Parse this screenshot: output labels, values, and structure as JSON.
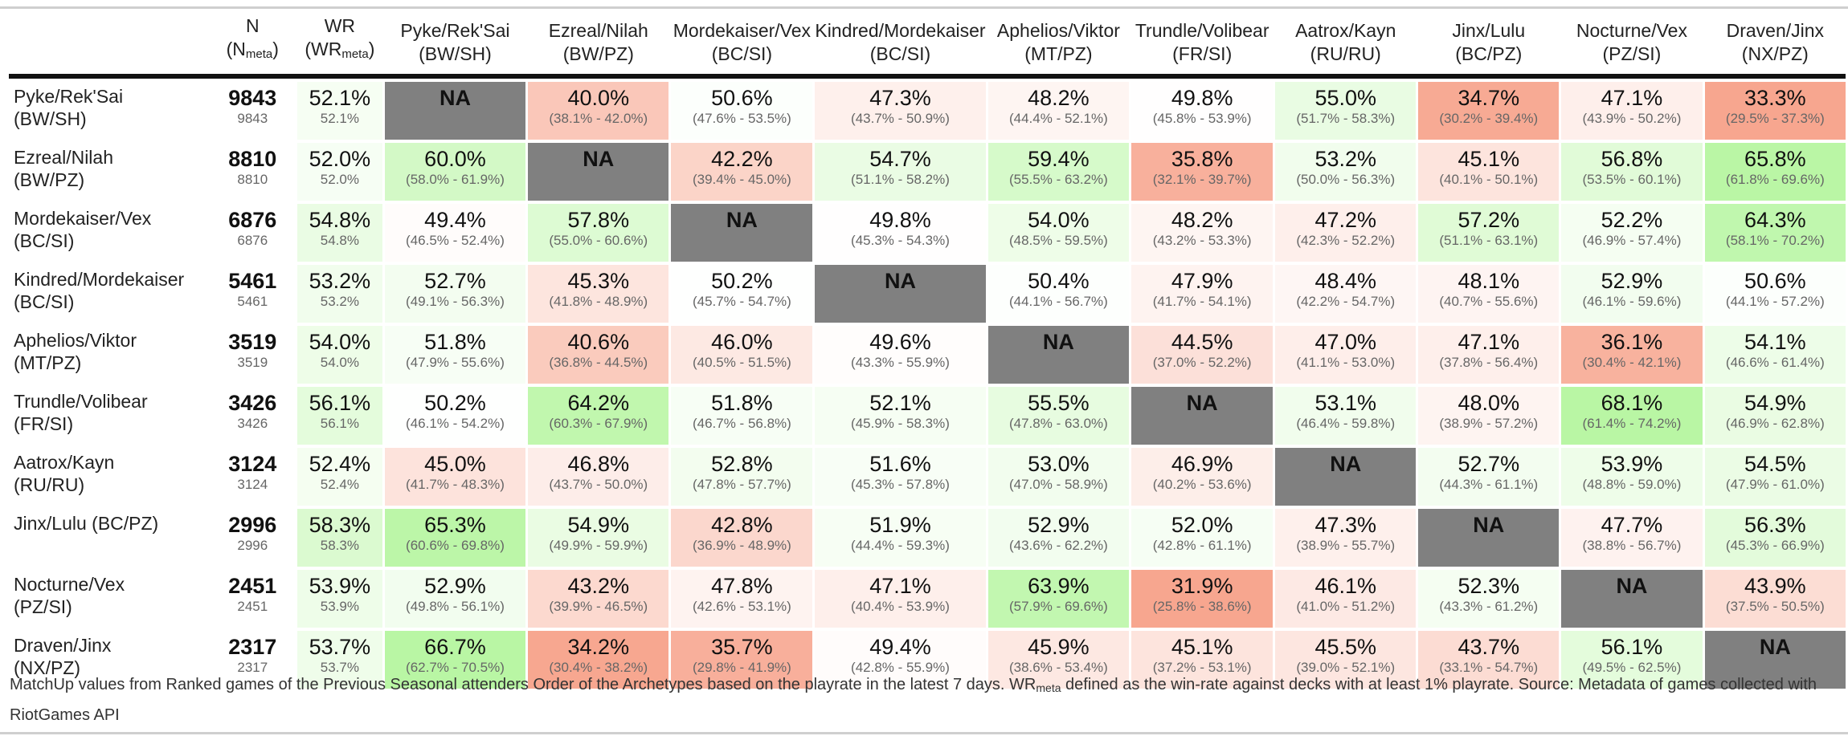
{
  "header": {
    "n_label": "N",
    "n_meta_base": "N",
    "n_meta_sub": "meta",
    "wr_label": "WR",
    "wr_meta_base": "WR",
    "wr_meta_sub": "meta"
  },
  "archetypes": [
    {
      "name": "Pyke/Rek'Sai",
      "regions": "(BW/SH)"
    },
    {
      "name": "Ezreal/Nilah",
      "regions": "(BW/PZ)"
    },
    {
      "name": "Mordekaiser/Vex",
      "regions": "(BC/SI)"
    },
    {
      "name": "Kindred/Mordekaiser",
      "regions": "(BC/SI)"
    },
    {
      "name": "Aphelios/Viktor",
      "regions": "(MT/PZ)"
    },
    {
      "name": "Trundle/Volibear",
      "regions": "(FR/SI)"
    },
    {
      "name": "Aatrox/Kayn",
      "regions": "(RU/RU)"
    },
    {
      "name": "Jinx/Lulu",
      "regions": "(BC/PZ)"
    },
    {
      "name": "Nocturne/Vex",
      "regions": "(PZ/SI)"
    },
    {
      "name": "Draven/Jinx",
      "regions": "(NX/PZ)"
    }
  ],
  "rows": [
    {
      "row_name": "Pyke/Rek'Sai",
      "row_regions": "(BW/SH)",
      "n": "9843",
      "n_meta": "9843",
      "wr": "52.1%",
      "wr_meta": "52.1%",
      "cells": [
        {
          "wr": "NA",
          "ci": "",
          "v": null
        },
        {
          "wr": "40.0%",
          "ci": "(38.1% - 42.0%)",
          "v": 40.0
        },
        {
          "wr": "50.6%",
          "ci": "(47.6% - 53.5%)",
          "v": 50.6
        },
        {
          "wr": "47.3%",
          "ci": "(43.7% - 50.9%)",
          "v": 47.3
        },
        {
          "wr": "48.2%",
          "ci": "(44.4% - 52.1%)",
          "v": 48.2
        },
        {
          "wr": "49.8%",
          "ci": "(45.8% - 53.9%)",
          "v": 49.8
        },
        {
          "wr": "55.0%",
          "ci": "(51.7% - 58.3%)",
          "v": 55.0
        },
        {
          "wr": "34.7%",
          "ci": "(30.2% - 39.4%)",
          "v": 34.7
        },
        {
          "wr": "47.1%",
          "ci": "(43.9% - 50.2%)",
          "v": 47.1
        },
        {
          "wr": "33.3%",
          "ci": "(29.5% - 37.3%)",
          "v": 33.3
        }
      ]
    },
    {
      "row_name": "Ezreal/Nilah",
      "row_regions": "(BW/PZ)",
      "n": "8810",
      "n_meta": "8810",
      "wr": "52.0%",
      "wr_meta": "52.0%",
      "cells": [
        {
          "wr": "60.0%",
          "ci": "(58.0% - 61.9%)",
          "v": 60.0
        },
        {
          "wr": "NA",
          "ci": "",
          "v": null
        },
        {
          "wr": "42.2%",
          "ci": "(39.4% - 45.0%)",
          "v": 42.2
        },
        {
          "wr": "54.7%",
          "ci": "(51.1% - 58.2%)",
          "v": 54.7
        },
        {
          "wr": "59.4%",
          "ci": "(55.5% - 63.2%)",
          "v": 59.4
        },
        {
          "wr": "35.8%",
          "ci": "(32.1% - 39.7%)",
          "v": 35.8
        },
        {
          "wr": "53.2%",
          "ci": "(50.0% - 56.3%)",
          "v": 53.2
        },
        {
          "wr": "45.1%",
          "ci": "(40.1% - 50.1%)",
          "v": 45.1
        },
        {
          "wr": "56.8%",
          "ci": "(53.5% - 60.1%)",
          "v": 56.8
        },
        {
          "wr": "65.8%",
          "ci": "(61.8% - 69.6%)",
          "v": 65.8
        }
      ]
    },
    {
      "row_name": "Mordekaiser/Vex",
      "row_regions": "(BC/SI)",
      "n": "6876",
      "n_meta": "6876",
      "wr": "54.8%",
      "wr_meta": "54.8%",
      "cells": [
        {
          "wr": "49.4%",
          "ci": "(46.5% - 52.4%)",
          "v": 49.4
        },
        {
          "wr": "57.8%",
          "ci": "(55.0% - 60.6%)",
          "v": 57.8
        },
        {
          "wr": "NA",
          "ci": "",
          "v": null
        },
        {
          "wr": "49.8%",
          "ci": "(45.3% - 54.3%)",
          "v": 49.8
        },
        {
          "wr": "54.0%",
          "ci": "(48.5% - 59.5%)",
          "v": 54.0
        },
        {
          "wr": "48.2%",
          "ci": "(43.2% - 53.3%)",
          "v": 48.2
        },
        {
          "wr": "47.2%",
          "ci": "(42.3% - 52.2%)",
          "v": 47.2
        },
        {
          "wr": "57.2%",
          "ci": "(51.1% - 63.1%)",
          "v": 57.2
        },
        {
          "wr": "52.2%",
          "ci": "(46.9% - 57.4%)",
          "v": 52.2
        },
        {
          "wr": "64.3%",
          "ci": "(58.1% - 70.2%)",
          "v": 64.3
        }
      ]
    },
    {
      "row_name": "Kindred/Mordekaiser",
      "row_regions": "(BC/SI)",
      "n": "5461",
      "n_meta": "5461",
      "wr": "53.2%",
      "wr_meta": "53.2%",
      "cells": [
        {
          "wr": "52.7%",
          "ci": "(49.1% - 56.3%)",
          "v": 52.7
        },
        {
          "wr": "45.3%",
          "ci": "(41.8% - 48.9%)",
          "v": 45.3
        },
        {
          "wr": "50.2%",
          "ci": "(45.7% - 54.7%)",
          "v": 50.2
        },
        {
          "wr": "NA",
          "ci": "",
          "v": null
        },
        {
          "wr": "50.4%",
          "ci": "(44.1% - 56.7%)",
          "v": 50.4
        },
        {
          "wr": "47.9%",
          "ci": "(41.7% - 54.1%)",
          "v": 47.9
        },
        {
          "wr": "48.4%",
          "ci": "(42.2% - 54.7%)",
          "v": 48.4
        },
        {
          "wr": "48.1%",
          "ci": "(40.7% - 55.6%)",
          "v": 48.1
        },
        {
          "wr": "52.9%",
          "ci": "(46.1% - 59.6%)",
          "v": 52.9
        },
        {
          "wr": "50.6%",
          "ci": "(44.1% - 57.2%)",
          "v": 50.6
        }
      ]
    },
    {
      "row_name": "Aphelios/Viktor",
      "row_regions": "(MT/PZ)",
      "n": "3519",
      "n_meta": "3519",
      "wr": "54.0%",
      "wr_meta": "54.0%",
      "cells": [
        {
          "wr": "51.8%",
          "ci": "(47.9% - 55.6%)",
          "v": 51.8
        },
        {
          "wr": "40.6%",
          "ci": "(36.8% - 44.5%)",
          "v": 40.6
        },
        {
          "wr": "46.0%",
          "ci": "(40.5% - 51.5%)",
          "v": 46.0
        },
        {
          "wr": "49.6%",
          "ci": "(43.3% - 55.9%)",
          "v": 49.6
        },
        {
          "wr": "NA",
          "ci": "",
          "v": null
        },
        {
          "wr": "44.5%",
          "ci": "(37.0% - 52.2%)",
          "v": 44.5
        },
        {
          "wr": "47.0%",
          "ci": "(41.1% - 53.0%)",
          "v": 47.0
        },
        {
          "wr": "47.1%",
          "ci": "(37.8% - 56.4%)",
          "v": 47.1
        },
        {
          "wr": "36.1%",
          "ci": "(30.4% - 42.1%)",
          "v": 36.1
        },
        {
          "wr": "54.1%",
          "ci": "(46.6% - 61.4%)",
          "v": 54.1
        }
      ]
    },
    {
      "row_name": "Trundle/Volibear",
      "row_regions": "(FR/SI)",
      "n": "3426",
      "n_meta": "3426",
      "wr": "56.1%",
      "wr_meta": "56.1%",
      "cells": [
        {
          "wr": "50.2%",
          "ci": "(46.1% - 54.2%)",
          "v": 50.2
        },
        {
          "wr": "64.2%",
          "ci": "(60.3% - 67.9%)",
          "v": 64.2
        },
        {
          "wr": "51.8%",
          "ci": "(46.7% - 56.8%)",
          "v": 51.8
        },
        {
          "wr": "52.1%",
          "ci": "(45.9% - 58.3%)",
          "v": 52.1
        },
        {
          "wr": "55.5%",
          "ci": "(47.8% - 63.0%)",
          "v": 55.5
        },
        {
          "wr": "NA",
          "ci": "",
          "v": null
        },
        {
          "wr": "53.1%",
          "ci": "(46.4% - 59.8%)",
          "v": 53.1
        },
        {
          "wr": "48.0%",
          "ci": "(38.9% - 57.2%)",
          "v": 48.0
        },
        {
          "wr": "68.1%",
          "ci": "(61.4% - 74.2%)",
          "v": 68.1
        },
        {
          "wr": "54.9%",
          "ci": "(46.9% - 62.8%)",
          "v": 54.9
        }
      ]
    },
    {
      "row_name": "Aatrox/Kayn",
      "row_regions": "(RU/RU)",
      "n": "3124",
      "n_meta": "3124",
      "wr": "52.4%",
      "wr_meta": "52.4%",
      "cells": [
        {
          "wr": "45.0%",
          "ci": "(41.7% - 48.3%)",
          "v": 45.0
        },
        {
          "wr": "46.8%",
          "ci": "(43.7% - 50.0%)",
          "v": 46.8
        },
        {
          "wr": "52.8%",
          "ci": "(47.8% - 57.7%)",
          "v": 52.8
        },
        {
          "wr": "51.6%",
          "ci": "(45.3% - 57.8%)",
          "v": 51.6
        },
        {
          "wr": "53.0%",
          "ci": "(47.0% - 58.9%)",
          "v": 53.0
        },
        {
          "wr": "46.9%",
          "ci": "(40.2% - 53.6%)",
          "v": 46.9
        },
        {
          "wr": "NA",
          "ci": "",
          "v": null
        },
        {
          "wr": "52.7%",
          "ci": "(44.3% - 61.1%)",
          "v": 52.7
        },
        {
          "wr": "53.9%",
          "ci": "(48.8% - 59.0%)",
          "v": 53.9
        },
        {
          "wr": "54.5%",
          "ci": "(47.9% - 61.0%)",
          "v": 54.5
        }
      ]
    },
    {
      "row_name": "Jinx/Lulu (BC/PZ)",
      "row_regions": "",
      "n": "2996",
      "n_meta": "2996",
      "wr": "58.3%",
      "wr_meta": "58.3%",
      "cells": [
        {
          "wr": "65.3%",
          "ci": "(60.6% - 69.8%)",
          "v": 65.3
        },
        {
          "wr": "54.9%",
          "ci": "(49.9% - 59.9%)",
          "v": 54.9
        },
        {
          "wr": "42.8%",
          "ci": "(36.9% - 48.9%)",
          "v": 42.8
        },
        {
          "wr": "51.9%",
          "ci": "(44.4% - 59.3%)",
          "v": 51.9
        },
        {
          "wr": "52.9%",
          "ci": "(43.6% - 62.2%)",
          "v": 52.9
        },
        {
          "wr": "52.0%",
          "ci": "(42.8% - 61.1%)",
          "v": 52.0
        },
        {
          "wr": "47.3%",
          "ci": "(38.9% - 55.7%)",
          "v": 47.3
        },
        {
          "wr": "NA",
          "ci": "",
          "v": null
        },
        {
          "wr": "47.7%",
          "ci": "(38.8% - 56.7%)",
          "v": 47.7
        },
        {
          "wr": "56.3%",
          "ci": "(45.3% - 66.9%)",
          "v": 56.3
        }
      ]
    },
    {
      "row_name": "Nocturne/Vex",
      "row_regions": "(PZ/SI)",
      "n": "2451",
      "n_meta": "2451",
      "wr": "53.9%",
      "wr_meta": "53.9%",
      "cells": [
        {
          "wr": "52.9%",
          "ci": "(49.8% - 56.1%)",
          "v": 52.9
        },
        {
          "wr": "43.2%",
          "ci": "(39.9% - 46.5%)",
          "v": 43.2
        },
        {
          "wr": "47.8%",
          "ci": "(42.6% - 53.1%)",
          "v": 47.8
        },
        {
          "wr": "47.1%",
          "ci": "(40.4% - 53.9%)",
          "v": 47.1
        },
        {
          "wr": "63.9%",
          "ci": "(57.9% - 69.6%)",
          "v": 63.9
        },
        {
          "wr": "31.9%",
          "ci": "(25.8% - 38.6%)",
          "v": 31.9
        },
        {
          "wr": "46.1%",
          "ci": "(41.0% - 51.2%)",
          "v": 46.1
        },
        {
          "wr": "52.3%",
          "ci": "(43.3% - 61.2%)",
          "v": 52.3
        },
        {
          "wr": "NA",
          "ci": "",
          "v": null
        },
        {
          "wr": "43.9%",
          "ci": "(37.5% - 50.5%)",
          "v": 43.9
        }
      ]
    },
    {
      "row_name": "Draven/Jinx",
      "row_regions": "(NX/PZ)",
      "n": "2317",
      "n_meta": "2317",
      "wr": "53.7%",
      "wr_meta": "53.7%",
      "cells": [
        {
          "wr": "66.7%",
          "ci": "(62.7% - 70.5%)",
          "v": 66.7
        },
        {
          "wr": "34.2%",
          "ci": "(30.4% - 38.2%)",
          "v": 34.2
        },
        {
          "wr": "35.7%",
          "ci": "(29.8% - 41.9%)",
          "v": 35.7
        },
        {
          "wr": "49.4%",
          "ci": "(42.8% - 55.9%)",
          "v": 49.4
        },
        {
          "wr": "45.9%",
          "ci": "(38.6% - 53.4%)",
          "v": 45.9
        },
        {
          "wr": "45.1%",
          "ci": "(37.2% - 53.1%)",
          "v": 45.1
        },
        {
          "wr": "45.5%",
          "ci": "(39.0% - 52.1%)",
          "v": 45.5
        },
        {
          "wr": "43.7%",
          "ci": "(33.1% - 54.7%)",
          "v": 43.7
        },
        {
          "wr": "56.1%",
          "ci": "(49.5% - 62.5%)",
          "v": 56.1
        },
        {
          "wr": "NA",
          "ci": "",
          "v": null
        }
      ]
    }
  ],
  "footnote": {
    "part1": "MatchUp values from Ranked games of the Previous Seasonal attenders Order of the Archetypes based on the playrate in the latest 7 days. ",
    "wr_base": "WR",
    "wr_sub": "meta",
    "part2": " defined as the win-rate against decks with at least 1% playrate. Source: Metadata of games collected with RiotGames API"
  },
  "colors": {
    "na_cell": "#808080",
    "good": "#b9f6a4",
    "bad": "#f7a68f",
    "neutral": "#ffffff",
    "rule": "#111111"
  }
}
